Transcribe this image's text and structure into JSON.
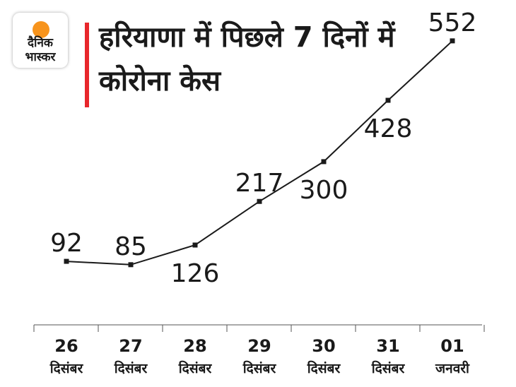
{
  "brand": {
    "logo_line1": "दैनिक",
    "logo_line2": "भास्कर",
    "accent_color": "#e8262b",
    "sun_color": "#f7941d"
  },
  "chart_data": {
    "type": "line",
    "title": "हरियाणा में पिछले 7 दिनों में कोरोना केस",
    "xlabel": "",
    "ylabel": "",
    "categories": [
      {
        "day": "26",
        "month": "दिसंबर"
      },
      {
        "day": "27",
        "month": "दिसंबर"
      },
      {
        "day": "28",
        "month": "दिसंबर"
      },
      {
        "day": "29",
        "month": "दिसंबर"
      },
      {
        "day": "30",
        "month": "दिसंबर"
      },
      {
        "day": "31",
        "month": "दिसंबर"
      },
      {
        "day": "01",
        "month": "जनवरी"
      }
    ],
    "series": [
      {
        "values": [
          92,
          85,
          126,
          217,
          300,
          428,
          552
        ]
      }
    ],
    "ylim": [
      0,
      600
    ],
    "grid": false,
    "line_color": "#1a1a1a"
  }
}
